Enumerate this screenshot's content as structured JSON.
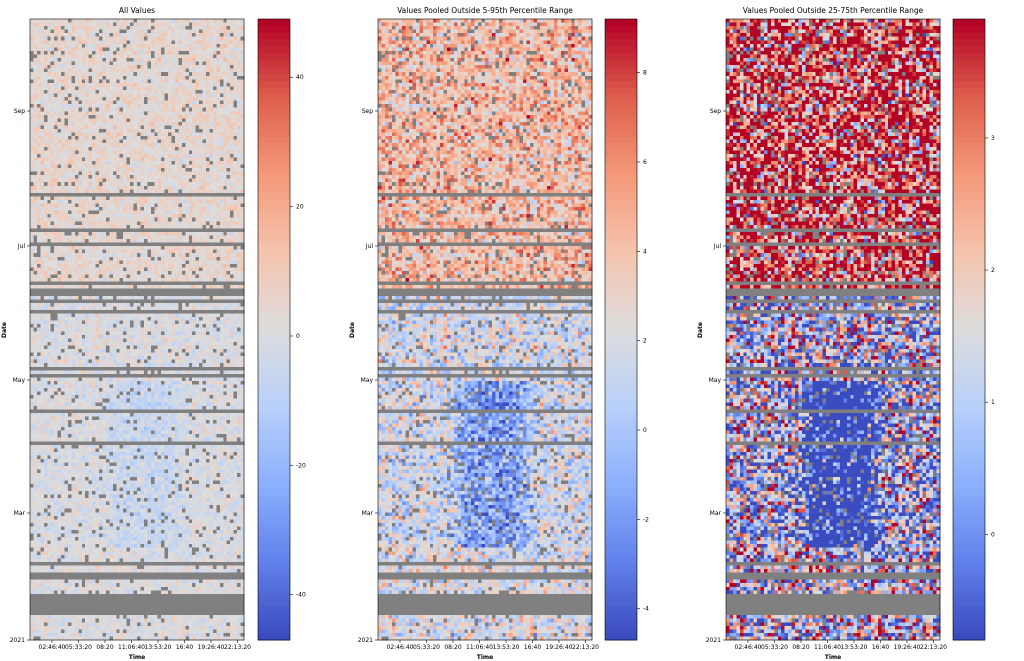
{
  "shared": {
    "ylabel": "Date",
    "xlabel": "Time",
    "x_ticks": [
      "02:46:40",
      "05:33:20",
      "08:20",
      "11:06:40",
      "13:53:20",
      "16:40",
      "19:26:40",
      "22:13:20"
    ],
    "y_ticks": [
      "Sep",
      "Jul",
      "May",
      "Mar",
      "2021"
    ],
    "missing_color": "#808080",
    "colormap": "coolwarm"
  },
  "chart_data": [
    {
      "type": "heatmap",
      "title": "All Values",
      "xlabel": "Time",
      "ylabel": "Date",
      "colorbar_ticks": [
        40,
        20,
        0,
        -20,
        -40
      ],
      "colorbar_range": [
        -47,
        49
      ],
      "pattern": "mostly near zero; slightly negative block in May–Apr around 08:20–13:53"
    },
    {
      "type": "heatmap",
      "title": "Values Pooled Outside 5-95th Percentile Range",
      "xlabel": "Time",
      "ylabel": "Date",
      "colorbar_ticks": [
        8,
        6,
        4,
        2,
        0,
        -2,
        -4
      ],
      "colorbar_range": [
        -4.7,
        9.2
      ],
      "pattern": "positive (red) Jun–Oct; strongly negative (blue) block May–Mar around 08:20–16:40"
    },
    {
      "type": "heatmap",
      "title": "Values Pooled Outside 25-75th Percentile Range",
      "xlabel": "Time",
      "ylabel": "Date",
      "colorbar_ticks": [
        3,
        2,
        1,
        0
      ],
      "colorbar_range": [
        -0.8,
        3.9
      ],
      "pattern": "saturated red Jun–Oct; saturated blue block May–Mar around 08:20–16:40"
    }
  ]
}
